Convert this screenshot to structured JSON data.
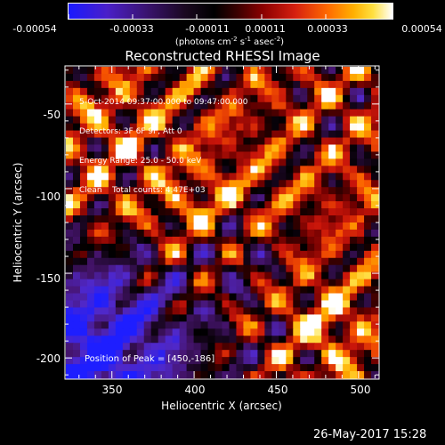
{
  "colorbar": {
    "ticks": [
      "-0.00054",
      "-0.00033",
      "-0.00011",
      "0.00011",
      "0.00033",
      "0.00054"
    ],
    "units_main": "(photons cm",
    "units_sup1": "-2",
    "units_mid": " s",
    "units_sup2": "-1",
    "units_end": " asec",
    "units_sup3": "-2",
    "units_close": ")",
    "colors": [
      "#1a1aff",
      "#5b1fb0",
      "#2a0a30",
      "#000000",
      "#8b0000",
      "#e23010",
      "#ff8c00",
      "#ffd700",
      "#ffffff"
    ]
  },
  "chart_data": {
    "type": "heatmap",
    "title": "Reconstructed RHESSI Image",
    "xlabel": "Heliocentric X (arcsec)",
    "ylabel": "Heliocentric Y (arcsec)",
    "xlim": [
      322,
      512
    ],
    "ylim": [
      -212,
      -28
    ],
    "xticks": [
      350,
      400,
      450,
      500
    ],
    "yticks": [
      -50,
      -100,
      -150,
      -200
    ],
    "annotations": [
      "5-Oct-2014 09:37:00.000 to 09:47:00.000",
      "Detectors: 3F 6F 9F, Att 0",
      "Energy Range: 25.0 - 50.0 keV",
      "Clean    Total counts: 4.47E+03"
    ],
    "peak_label": "Position of Peak = [450,-186]",
    "peak": [
      450,
      -186
    ],
    "value_range": [
      -0.00054,
      0.00054
    ]
  },
  "footer": {
    "timestamp": "26-May-2017 15:28"
  }
}
